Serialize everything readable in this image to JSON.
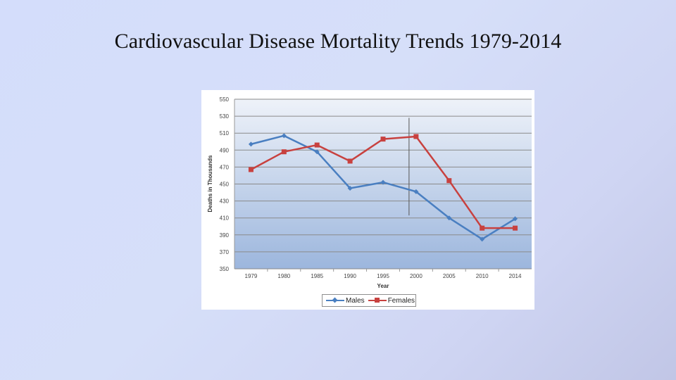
{
  "slide": {
    "title": "Cardiovascular Disease Mortality Trends 1979-2014"
  },
  "colors": {
    "males": "#4a7fc1",
    "females": "#c8413f",
    "plot_top": "#eef2f9",
    "plot_bottom": "#9cb6dd",
    "grid": "#8a8a8a"
  },
  "chart_data": {
    "type": "line",
    "title": "",
    "xlabel": "Year",
    "ylabel": "Deaths in Thousands",
    "categories": [
      "1979",
      "1980",
      "1985",
      "1990",
      "1995",
      "2000",
      "2005",
      "2010",
      "2014"
    ],
    "yticks": [
      "550",
      "530",
      "510",
      "490",
      "470",
      "450",
      "430",
      "410",
      "390",
      "370",
      "350"
    ],
    "ylim": [
      350,
      550
    ],
    "grid": true,
    "legend_position": "bottom",
    "vertical_marker_category": "2000",
    "series": [
      {
        "name": "Males",
        "marker": "diamond",
        "color": "#4a7fc1",
        "values": [
          497,
          507,
          488,
          445,
          452,
          441,
          410,
          385,
          409
        ]
      },
      {
        "name": "Females",
        "marker": "square",
        "color": "#c8413f",
        "values": [
          467,
          488,
          496,
          477,
          503,
          506,
          454,
          398,
          398
        ]
      }
    ]
  }
}
